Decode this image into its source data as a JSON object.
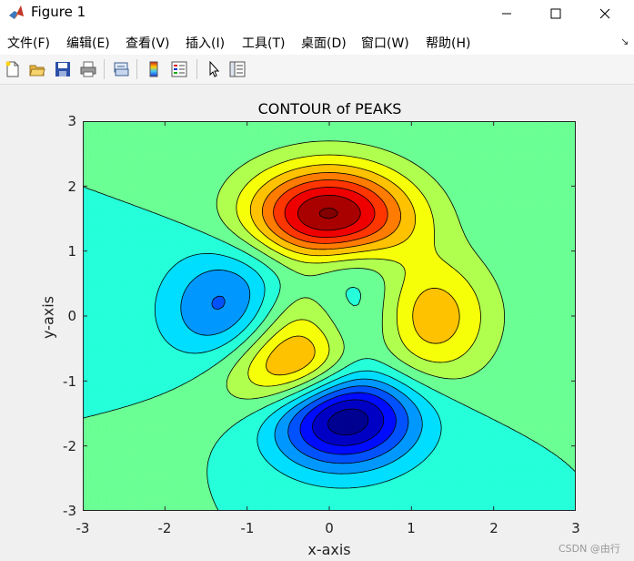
{
  "window": {
    "title": "Figure 1"
  },
  "menu": [
    "文件(F)",
    "编辑(E)",
    "查看(V)",
    "插入(I)",
    "工具(T)",
    "桌面(D)",
    "窗口(W)",
    "帮助(H)"
  ],
  "toolbar": [
    "new-figure-icon",
    "open-file-icon",
    "save-icon",
    "print-icon",
    "link-plot-icon",
    "insert-colorbar-icon",
    "insert-legend-icon",
    "edit-plot-icon",
    "property-inspector-icon"
  ],
  "chart_data": {
    "type": "contour",
    "function": "peaks",
    "title": "CONTOUR of PEAKS",
    "xlabel": "x-axis",
    "ylabel": "y-axis",
    "xlim": [
      -3,
      3
    ],
    "ylim": [
      -3,
      3
    ],
    "xticks": [
      "-3",
      "-2",
      "-1",
      "0",
      "1",
      "2",
      "3"
    ],
    "yticks": [
      "3",
      "2",
      "1",
      "0",
      "-1",
      "-2",
      "-3"
    ],
    "levels": [
      -6,
      -5,
      -4,
      -3,
      -2,
      -1,
      0,
      1,
      2,
      3,
      4,
      5,
      6,
      7,
      8
    ],
    "colormap": "jet",
    "filled": true,
    "line_color": "#000000"
  },
  "watermark": "CSDN @由行"
}
